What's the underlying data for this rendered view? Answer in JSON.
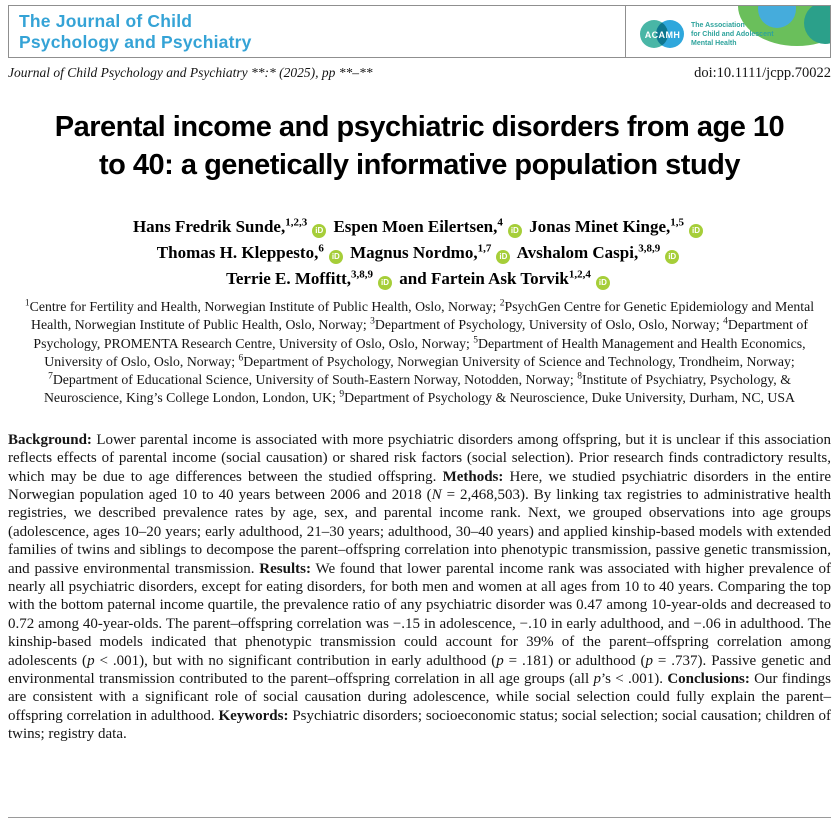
{
  "masthead": {
    "journal_logo_lines": [
      "The Journal of Child",
      "Psychology and Psychiatry"
    ],
    "acamh": {
      "acronym": "ACAMH",
      "association_lines": [
        "The Association",
        "for Child and Adolescent",
        "Mental Health"
      ]
    }
  },
  "citation": {
    "left": "Journal of Child Psychology and Psychiatry **:* (2025), pp **–**",
    "doi": "doi:10.1111/jcpp.70022"
  },
  "title": {
    "lines": [
      "Parental income and psychiatric disorders from age 10",
      "to 40: a genetically informative population study"
    ]
  },
  "authors": {
    "orcid_label": "iD",
    "lines": [
      [
        {
          "name": "Hans Fredrik Sunde,",
          "sup": "1,2,3",
          "orcid": true
        },
        {
          "name": "Espen Moen Eilertsen,",
          "sup": "4",
          "orcid": true
        },
        {
          "name": "Jonas Minet Kinge,",
          "sup": "1,5",
          "orcid": true
        }
      ],
      [
        {
          "name": "Thomas H. Kleppesto,",
          "sup": "6",
          "orcid": true
        },
        {
          "name": "Magnus Nordmo,",
          "sup": "1,7",
          "orcid": true
        },
        {
          "name": "Avshalom Caspi,",
          "sup": "3,8,9",
          "orcid": true
        }
      ],
      [
        {
          "name": "Terrie E. Moffitt,",
          "sup": "3,8,9",
          "orcid": true
        },
        {
          "prefix": "and ",
          "name": "Fartein Ask Torvik",
          "sup": "1,2,4",
          "orcid": true
        }
      ]
    ]
  },
  "affiliations": [
    {
      "sup": "1",
      "text": "Centre for Fertility and Health, Norwegian Institute of Public Health, Oslo, Norway; "
    },
    {
      "sup": "2",
      "text": "PsychGen Centre for Genetic Epidemiology and Mental Health, Norwegian Institute of Public Health, Oslo, Norway; "
    },
    {
      "sup": "3",
      "text": "Department of Psychology, University of Oslo, Oslo, Norway; "
    },
    {
      "sup": "4",
      "text": "Department of Psychology, PROMENTA Research Centre, University of Oslo, Oslo, Norway; "
    },
    {
      "sup": "5",
      "text": "Department of Health Management and Health Economics, University of Oslo, Oslo, Norway; "
    },
    {
      "sup": "6",
      "text": "Department of Psychology, Norwegian University of Science and Technology, Trondheim, Norway; "
    },
    {
      "sup": "7",
      "text": "Department of Educational Science, University of South-Eastern Norway, Notodden, Norway; "
    },
    {
      "sup": "8",
      "text": "Institute of Psychiatry, Psychology, & Neuroscience, King’s College London, London, UK; "
    },
    {
      "sup": "9",
      "text": "Department of Psychology & Neuroscience, Duke University, Durham, NC, USA"
    }
  ],
  "abstract": {
    "segments": [
      {
        "t": "Background:",
        "b": true
      },
      {
        "t": " Lower parental income is associated with more psychiatric disorders among offspring, but it is unclear if this association reflects effects of parental income (social causation) or shared risk factors (social selection). Prior research finds contradictory results, which may be due to age differences between the studied offspring. "
      },
      {
        "t": "Methods:",
        "b": true
      },
      {
        "t": " Here, we studied psychiatric disorders in the entire Norwegian population aged 10 to 40 years between 2006 and 2018 ("
      },
      {
        "t": "N",
        "i": true
      },
      {
        "t": " = 2,468,503). By linking tax registries to administrative health registries, we described prevalence rates by age, sex, and parental income rank. Next, we grouped observations into age groups (adolescence, ages 10–20 years; early adulthood, 21–30 years; adulthood, 30–40 years) and applied kinship-based models with extended families of twins and siblings to decompose the parent–offspring correlation into phenotypic transmission, passive genetic transmission, and passive environmental transmission. "
      },
      {
        "t": "Results:",
        "b": true
      },
      {
        "t": " We found that lower parental income rank was associated with higher prevalence of nearly all psychiatric disorders, except for eating disorders, for both men and women at all ages from 10 to 40 years. Comparing the top with the bottom paternal income quartile, the prevalence ratio of any psychiatric disorder was 0.47 among 10-year-olds and decreased to 0.72 among 40-year-olds. The parent–offspring correlation was −.15 in adolescence, −.10 in early adulthood, and −.06 in adulthood. The kinship-based models indicated that phenotypic transmission could account for 39% of the parent–offspring correlation among adolescents ("
      },
      {
        "t": "p",
        "i": true
      },
      {
        "t": " < .001), but with no significant contribution in early adulthood ("
      },
      {
        "t": "p",
        "i": true
      },
      {
        "t": " = .181) or adulthood ("
      },
      {
        "t": "p",
        "i": true
      },
      {
        "t": " = .737). Passive genetic and environmental transmission contributed to the parent–offspring correlation in all age groups (all "
      },
      {
        "t": "p",
        "i": true
      },
      {
        "t": "’s < .001). "
      },
      {
        "t": "Conclusions:",
        "b": true
      },
      {
        "t": " Our findings are consistent with a significant role of social causation during adolescence, while social selection could fully explain the parent–offspring correlation in adulthood. "
      },
      {
        "t": "Keywords:",
        "b": true
      },
      {
        "t": " Psychiatric disorders; socioeconomic status; social selection; social causation; children of twins; registry data."
      }
    ]
  },
  "colors": {
    "journal_logo_blue": "#35a3d6",
    "orcid_green": "#a6ce39",
    "acamh_teal_circle": "#49b6a6",
    "acamh_blue_circle": "#2fa7dc",
    "acamh_text_teal": "#2ea39c",
    "decor_green": "#6abf5b",
    "decor_blue": "#45acdc",
    "decor_teal": "#2ba08a",
    "rule_gray": "#8f8f8f"
  }
}
